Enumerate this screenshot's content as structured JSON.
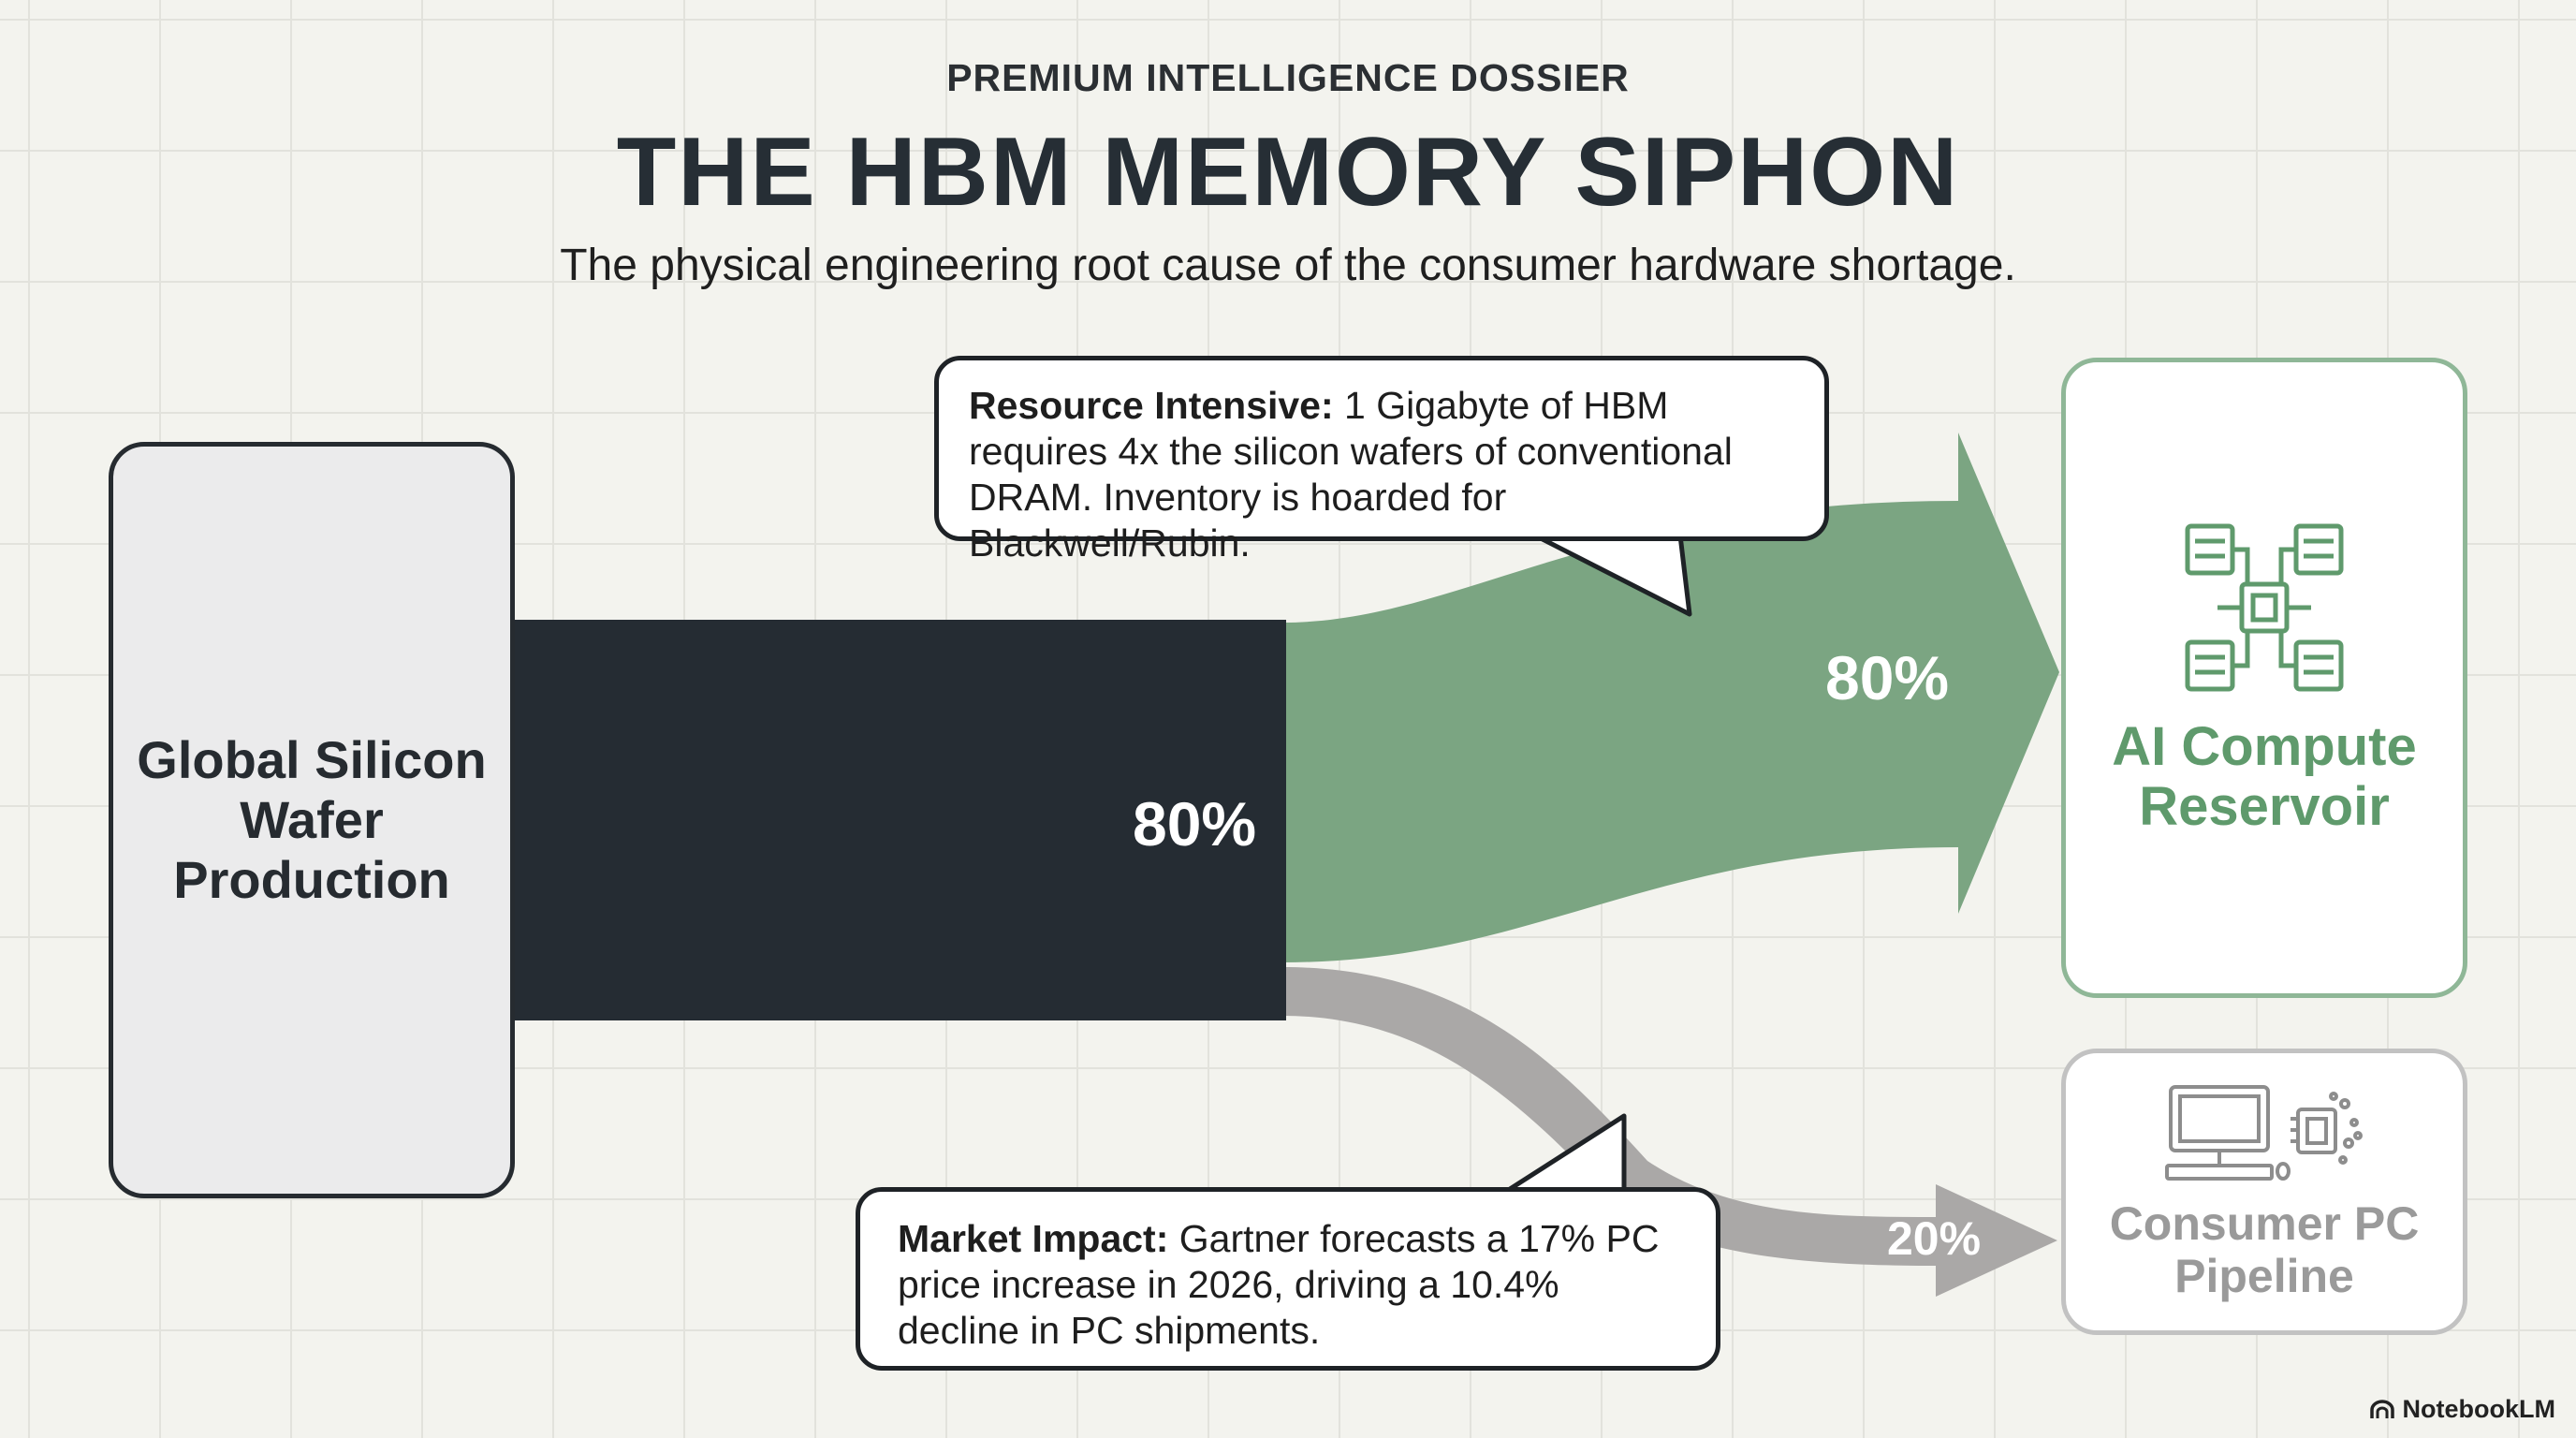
{
  "header": {
    "kicker": "PREMIUM INTELLIGENCE DOSSIER",
    "title": "THE HBM MEMORY SIPHON",
    "subtitle": "The physical engineering root cause of the consumer hardware shortage."
  },
  "nodes": {
    "source": {
      "label": "Global Silicon Wafer Production"
    },
    "ai": {
      "label": "AI Compute Reservoir"
    },
    "consumer": {
      "label": "Consumer PC Pipeline"
    }
  },
  "flows": {
    "main_pct": "80%",
    "ai_pct": "80%",
    "consumer_pct": "20%"
  },
  "callouts": {
    "top": {
      "heading": "Resource Intensive:",
      "body": "1 Gigabyte of HBM requires 4x the silicon wafers of conventional DRAM. Inventory is hoarded for Blackwell/Rubin."
    },
    "bottom": {
      "heading": "Market Impact:",
      "body": "Gartner forecasts a 17% PC price increase in 2026, driving a 10.4% decline in PC shipments."
    }
  },
  "brand": {
    "label": "NotebookLM"
  },
  "colors": {
    "main_flow": "#252c33",
    "ai_flow": "#7ba582",
    "consumer_flow": "#aaa8a7",
    "ai_accent": "#5f9a6c",
    "consumer_accent": "#9a9a9a"
  },
  "icons": {
    "ai": "server-chip-network-icon",
    "consumer": "desktop-computer-icon"
  }
}
